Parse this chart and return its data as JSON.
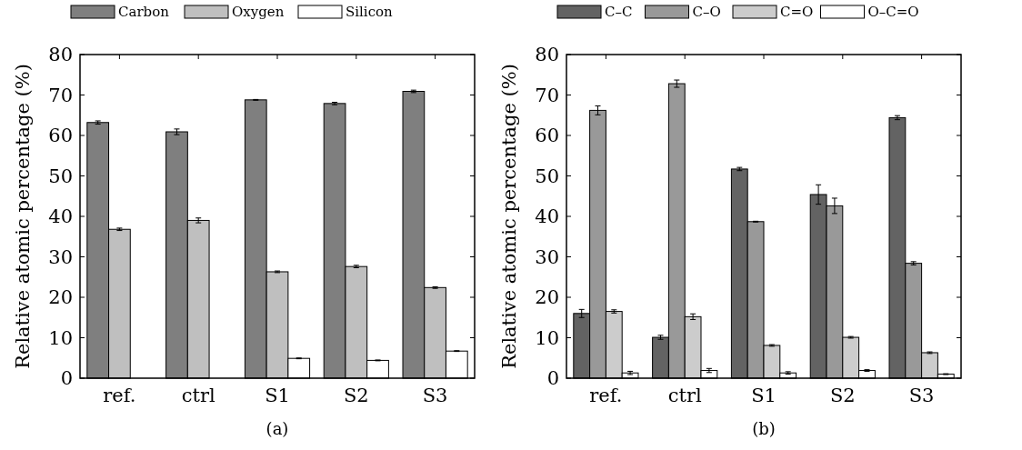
{
  "chart_data": [
    {
      "type": "bar",
      "xlabel": "(a)",
      "ylabel": "Relative atomic percentage (%)",
      "categories": [
        "ref.",
        "ctrl",
        "S1",
        "S2",
        "S3"
      ],
      "ylim": [
        0,
        80
      ],
      "yticks": [
        0,
        10,
        20,
        30,
        40,
        50,
        60,
        70,
        80
      ],
      "legend": "top",
      "grid": false,
      "series": [
        {
          "name": "Carbon",
          "color": "#7f7f7f",
          "values": [
            63.2,
            60.9,
            68.8,
            67.9,
            70.9
          ],
          "errors": [
            0.4,
            0.7,
            0.1,
            0.3,
            0.3
          ]
        },
        {
          "name": "Oxygen",
          "color": "#bfbfbf",
          "values": [
            36.8,
            39.0,
            26.3,
            27.6,
            22.4
          ],
          "errors": [
            0.3,
            0.6,
            0.2,
            0.3,
            0.2
          ]
        },
        {
          "name": "Silicon",
          "color": "#ffffff",
          "values": [
            null,
            null,
            4.9,
            4.4,
            6.7
          ],
          "errors": [
            null,
            null,
            0.1,
            0.1,
            0.1
          ]
        }
      ]
    },
    {
      "type": "bar",
      "xlabel": "(b)",
      "ylabel": "Relative atomic percentage (%)",
      "categories": [
        "ref.",
        "ctrl",
        "S1",
        "S2",
        "S3"
      ],
      "ylim": [
        0,
        80
      ],
      "yticks": [
        0,
        10,
        20,
        30,
        40,
        50,
        60,
        70,
        80
      ],
      "legend": "top",
      "grid": false,
      "series": [
        {
          "name": "C–C",
          "color": "#636363",
          "values": [
            16.0,
            10.1,
            51.7,
            45.4,
            64.4
          ],
          "errors": [
            1.0,
            0.5,
            0.4,
            2.4,
            0.5
          ]
        },
        {
          "name": "C–O",
          "color": "#999999",
          "values": [
            66.2,
            72.8,
            38.7,
            42.6,
            28.4
          ],
          "errors": [
            1.1,
            0.9,
            0.1,
            1.9,
            0.4
          ]
        },
        {
          "name": "C=O",
          "color": "#cccccc",
          "values": [
            16.5,
            15.2,
            8.1,
            10.1,
            6.3
          ],
          "errors": [
            0.4,
            0.7,
            0.2,
            0.2,
            0.2
          ]
        },
        {
          "name": "O–C=O",
          "color": "#ffffff",
          "values": [
            1.3,
            1.9,
            1.3,
            1.9,
            1.0
          ],
          "errors": [
            0.4,
            0.5,
            0.3,
            0.2,
            0.1
          ]
        }
      ]
    }
  ]
}
